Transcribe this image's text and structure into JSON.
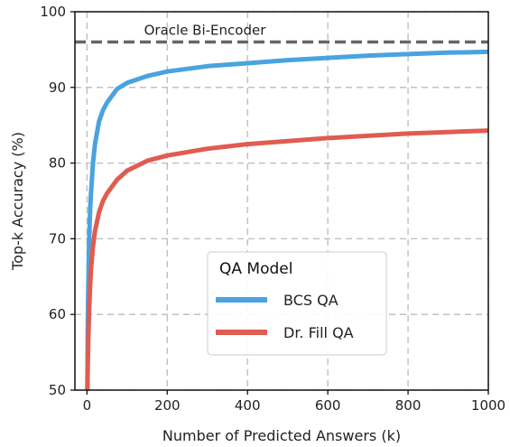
{
  "chart_data": {
    "type": "line",
    "xlabel": "Number of Predicted Answers (k)",
    "ylabel": "Top-k Accuracy (%)",
    "xlim": [
      -30,
      1000
    ],
    "ylim": [
      50,
      100
    ],
    "xticks": [
      0,
      200,
      400,
      600,
      800,
      1000
    ],
    "yticks": [
      50,
      60,
      70,
      80,
      90,
      100
    ],
    "grid": true,
    "legend": {
      "title": "QA Model",
      "position": "lower-right"
    },
    "reference_line": {
      "label": "Oracle Bi-Encoder",
      "y": 96,
      "color": "#666666"
    },
    "series": [
      {
        "name": "BCS QA",
        "color": "#4aa3df",
        "x": [
          1,
          2,
          3,
          5,
          8,
          10,
          15,
          20,
          30,
          40,
          50,
          75,
          100,
          150,
          200,
          300,
          400,
          500,
          600,
          700,
          800,
          900,
          1000
        ],
        "y": [
          50,
          58,
          63,
          69,
          74,
          76,
          80,
          82.5,
          85.5,
          87,
          88,
          89.8,
          90.6,
          91.5,
          92.1,
          92.8,
          93.2,
          93.6,
          93.9,
          94.2,
          94.4,
          94.6,
          94.7
        ]
      },
      {
        "name": "Dr. Fill QA",
        "color": "#e05c50",
        "x": [
          1,
          2,
          3,
          5,
          8,
          10,
          15,
          20,
          30,
          40,
          50,
          75,
          100,
          150,
          200,
          300,
          400,
          500,
          600,
          700,
          800,
          900,
          1000
        ],
        "y": [
          50,
          53,
          56,
          60,
          64,
          66,
          69,
          71,
          73.5,
          75,
          76,
          77.8,
          79,
          80.3,
          81,
          81.9,
          82.5,
          82.9,
          83.3,
          83.6,
          83.9,
          84.1,
          84.3
        ]
      }
    ]
  }
}
